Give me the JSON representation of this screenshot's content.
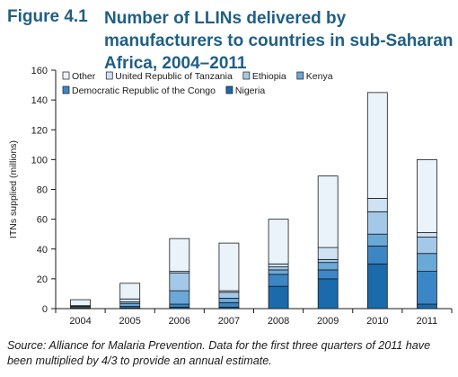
{
  "figure": {
    "number": "Figure 4.1",
    "title": "Number of LLINs delivered by manufacturers to countries in sub-Saharan Africa, 2004–2011",
    "source": "Source: Alliance for Malaria Prevention. Data for the first three quarters of 2011 have been multiplied by 4/3 to provide an annual estimate."
  },
  "colors": {
    "Nigeria": "#1b6aab",
    "Democratic Republic of the Congo": "#3d86c6",
    "Kenya": "#6aa8d8",
    "Ethiopia": "#a4c9e8",
    "United Republic of Tanzania": "#cfe2f3",
    "Other": "#eaf2fa",
    "stroke": "#1a1a1a"
  },
  "chart_data": {
    "type": "bar",
    "stacked": true,
    "categories": [
      "2004",
      "2005",
      "2006",
      "2007",
      "2008",
      "2009",
      "2010",
      "2011"
    ],
    "ylabel": "ITNs supplied (millions)",
    "ylim": [
      0,
      160
    ],
    "yticks": [
      0,
      20,
      40,
      60,
      80,
      100,
      120,
      140,
      160
    ],
    "grid": false,
    "legend_position": "top-left",
    "legend_order": [
      "Other",
      "United Republic of Tanzania",
      "Ethiopia",
      "Kenya",
      "Democratic Republic of the Congo",
      "Nigeria"
    ],
    "series": [
      {
        "name": "Nigeria",
        "values": [
          0.2,
          0.5,
          1,
          1,
          15,
          20,
          30,
          3
        ]
      },
      {
        "name": "Democratic Republic of the Congo",
        "values": [
          0.3,
          1,
          2,
          3,
          8,
          6,
          12,
          22
        ]
      },
      {
        "name": "Kenya",
        "values": [
          0.8,
          2,
          9,
          3,
          3,
          5,
          8,
          12
        ]
      },
      {
        "name": "Ethiopia",
        "values": [
          0.2,
          1,
          12,
          4,
          2,
          2,
          15,
          11
        ]
      },
      {
        "name": "United Republic of Tanzania",
        "values": [
          0.5,
          2,
          1,
          1,
          2,
          8,
          9,
          3
        ]
      },
      {
        "name": "Other",
        "values": [
          4,
          10.5,
          22,
          32,
          30,
          48,
          71,
          49
        ]
      }
    ]
  }
}
